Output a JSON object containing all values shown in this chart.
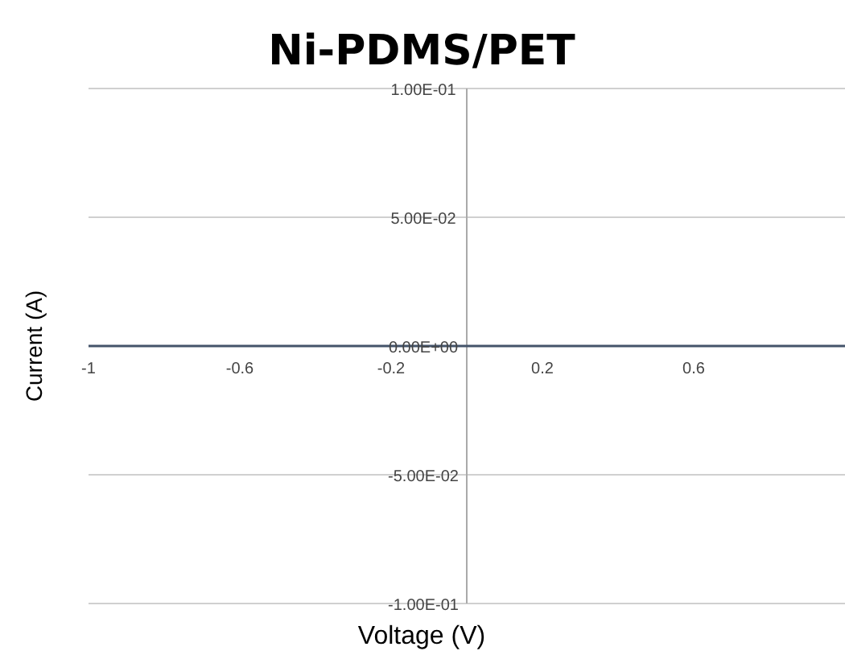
{
  "chart_data": {
    "type": "line",
    "title": "Ni-PDMS/PET",
    "xlabel": "Voltage (V)",
    "ylabel": "Current (A)",
    "x": [
      -1,
      1
    ],
    "series": [
      {
        "color": "#44546a",
        "values": [
          0,
          0
        ]
      }
    ],
    "xlim": [
      -1,
      1
    ],
    "xticks": [
      -1,
      -0.6,
      -0.2,
      0.2,
      0.6
    ],
    "ylim": [
      -0.1,
      0.1
    ],
    "yticks": [
      {
        "value": -0.1,
        "label": "-1.00E-01"
      },
      {
        "value": -0.05,
        "label": "-5.00E-02"
      },
      {
        "value": 0,
        "label": "0.00E+00"
      },
      {
        "value": 0.05,
        "label": "5.00E-02"
      },
      {
        "value": 0.1,
        "label": "1.00E-01"
      }
    ],
    "grid": "y",
    "marker": "none",
    "line_style": "solid"
  }
}
